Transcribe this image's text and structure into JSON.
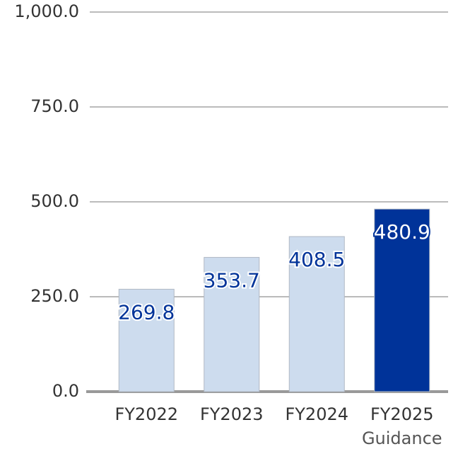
{
  "chart_data": {
    "type": "bar",
    "categories": [
      "FY2022",
      "FY2023",
      "FY2024",
      "FY2025"
    ],
    "category_sublabels": [
      null,
      null,
      null,
      "Guidance"
    ],
    "values": [
      269.8,
      353.7,
      408.5,
      480.9
    ],
    "colors": [
      "#cddcee",
      "#cddcee",
      "#cddcee",
      "#003399"
    ],
    "ylim": [
      0,
      1000
    ],
    "yticks": [
      {
        "value": 0,
        "label": "0.0"
      },
      {
        "value": 250,
        "label": "250.0"
      },
      {
        "value": 500,
        "label": "500.0"
      },
      {
        "value": 750,
        "label": "750.0"
      },
      {
        "value": 1000,
        "label": "1,000.0"
      }
    ],
    "grid": true
  }
}
